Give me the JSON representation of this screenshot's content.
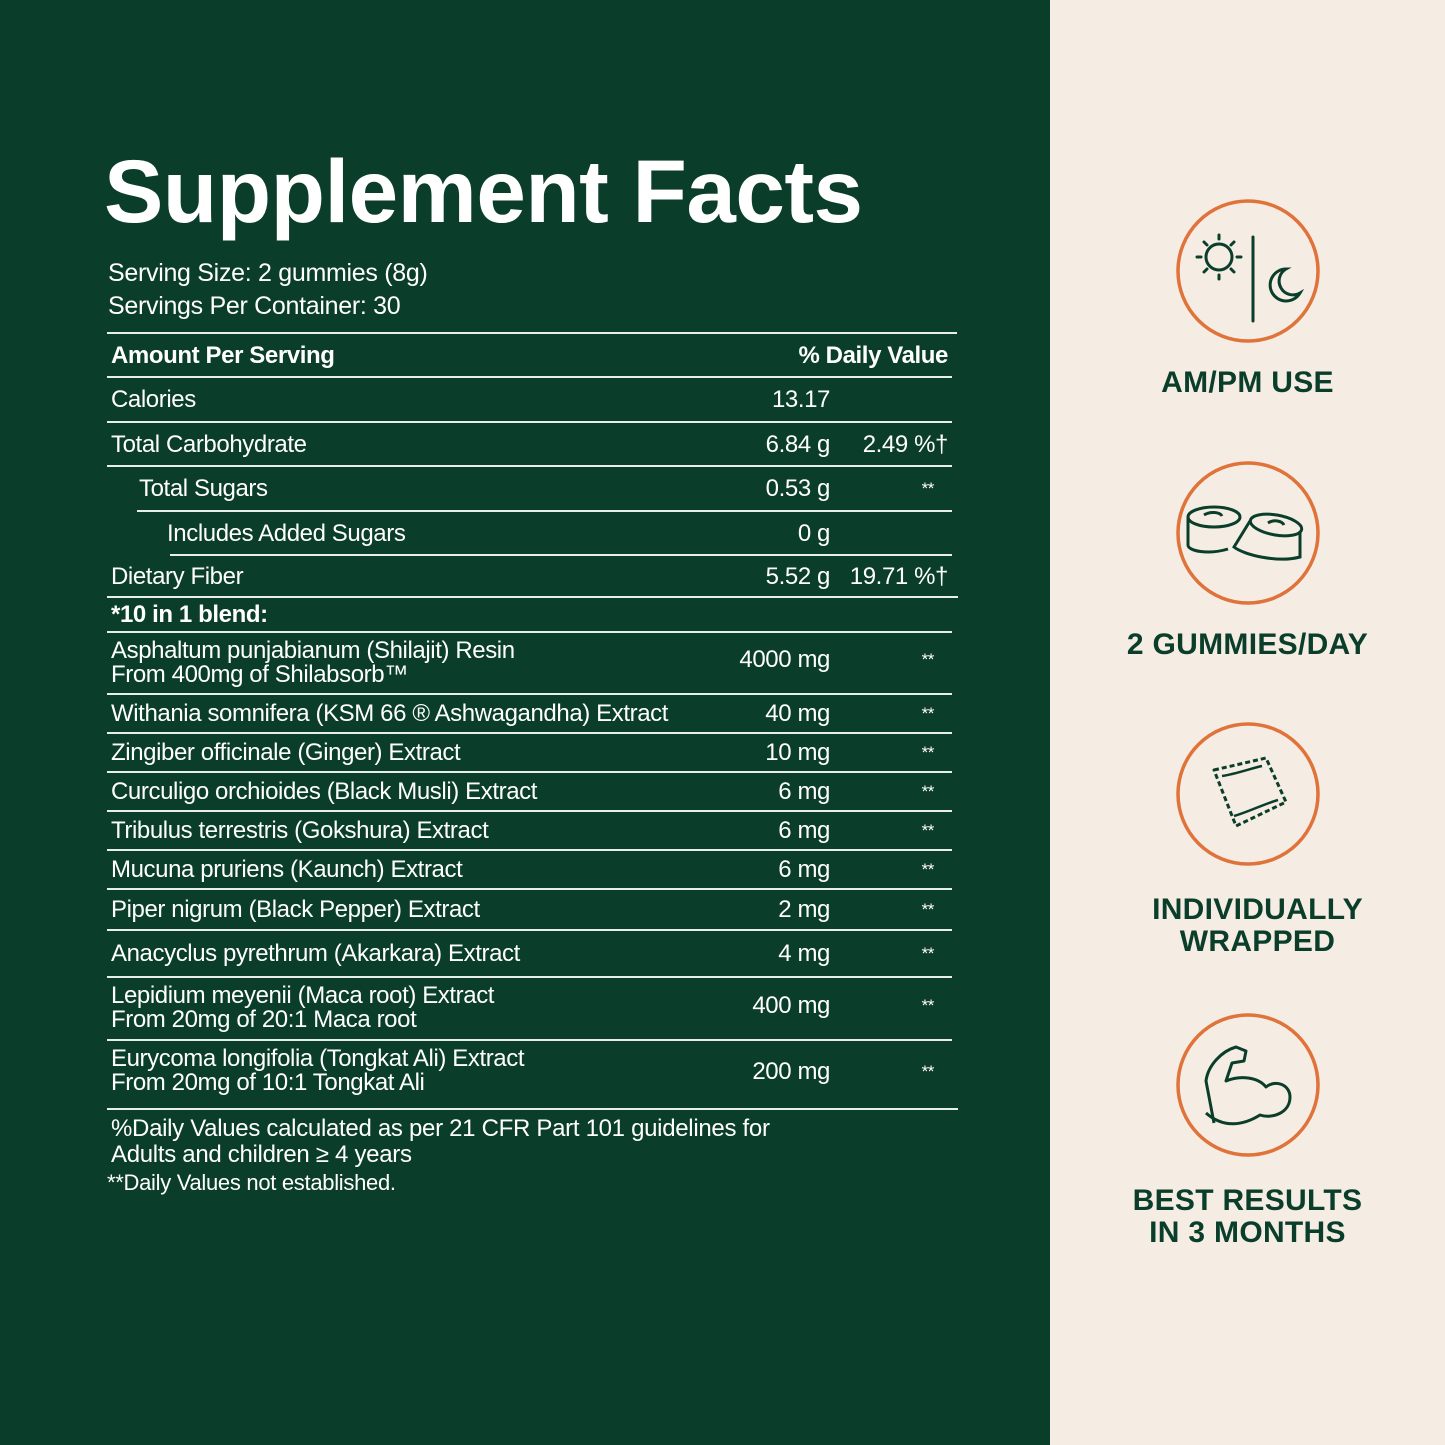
{
  "colors": {
    "background": "#0a3d2a",
    "panel": "#f5ece4",
    "accent": "#e0733a",
    "text": "#ffffff"
  },
  "facts": {
    "title": "Supplement Facts",
    "serving_size": "Serving Size: 2 gummies (8g)",
    "servings_per_container": "Servings Per Container: 30",
    "header": {
      "amount": "Amount Per Serving",
      "dv": "% Daily Value"
    },
    "rows": [
      {
        "name": "Calories",
        "amount": "13.17",
        "dv": ""
      },
      {
        "name": "Total Carbohydrate",
        "amount": "6.84 g",
        "dv": "2.49 %†"
      },
      {
        "name": "Total Sugars",
        "amount": "0.53 g",
        "dv": "**"
      },
      {
        "name": "Includes Added Sugars",
        "amount": "0 g",
        "dv": ""
      },
      {
        "name": "Dietary Fiber",
        "amount": "5.52 g",
        "dv": "19.71 %†"
      },
      {
        "name": "*10 in 1 blend:",
        "amount": "",
        "dv": ""
      },
      {
        "name": "Asphaltum punjabianum (Shilajit) Resin",
        "sub": "From 400mg of Shilabsorb™",
        "amount": "4000 mg",
        "dv": "**"
      },
      {
        "name": "Withania somnifera (KSM 66 ® Ashwagandha) Extract",
        "amount": "40 mg",
        "dv": "**"
      },
      {
        "name": "Zingiber officinale (Ginger) Extract",
        "amount": "10 mg",
        "dv": "**"
      },
      {
        "name": "Curculigo orchioides (Black Musli) Extract",
        "amount": "6 mg",
        "dv": "**"
      },
      {
        "name": "Tribulus terrestris (Gokshura) Extract",
        "amount": "6 mg",
        "dv": "**"
      },
      {
        "name": "Mucuna pruriens (Kaunch) Extract",
        "amount": "6 mg",
        "dv": "**"
      },
      {
        "name": "Piper nigrum (Black Pepper) Extract",
        "amount": "2 mg",
        "dv": "**"
      },
      {
        "name": "Anacyclus pyrethrum (Akarkara) Extract",
        "amount": "4 mg",
        "dv": "**"
      },
      {
        "name": "Lepidium meyenii (Maca root) Extract",
        "sub": "From 20mg of 20:1 Maca root",
        "amount": "400 mg",
        "dv": "**"
      },
      {
        "name": "Eurycoma longifolia (Tongkat Ali) Extract",
        "sub": "From 20mg of 10:1 Tongkat Ali",
        "amount": "200 mg",
        "dv": "**"
      }
    ],
    "footnote_1": "%Daily Values calculated as per 21 CFR Part 101 guidelines for",
    "footnote_2": "Adults and children ≥ 4 years",
    "footnote_3": "**Daily Values not established."
  },
  "badges": [
    {
      "icon": "sun-moon-icon",
      "label_1": "AM/PM USE",
      "label_2": ""
    },
    {
      "icon": "gummies-icon",
      "label_1": "2 GUMMIES/DAY",
      "label_2": ""
    },
    {
      "icon": "wrapper-icon",
      "label_1": "INDIVIDUALLY",
      "label_2": "WRAPPED"
    },
    {
      "icon": "flexed-arm-icon",
      "label_1": "BEST RESULTS",
      "label_2": "IN 3 MONTHS"
    }
  ]
}
